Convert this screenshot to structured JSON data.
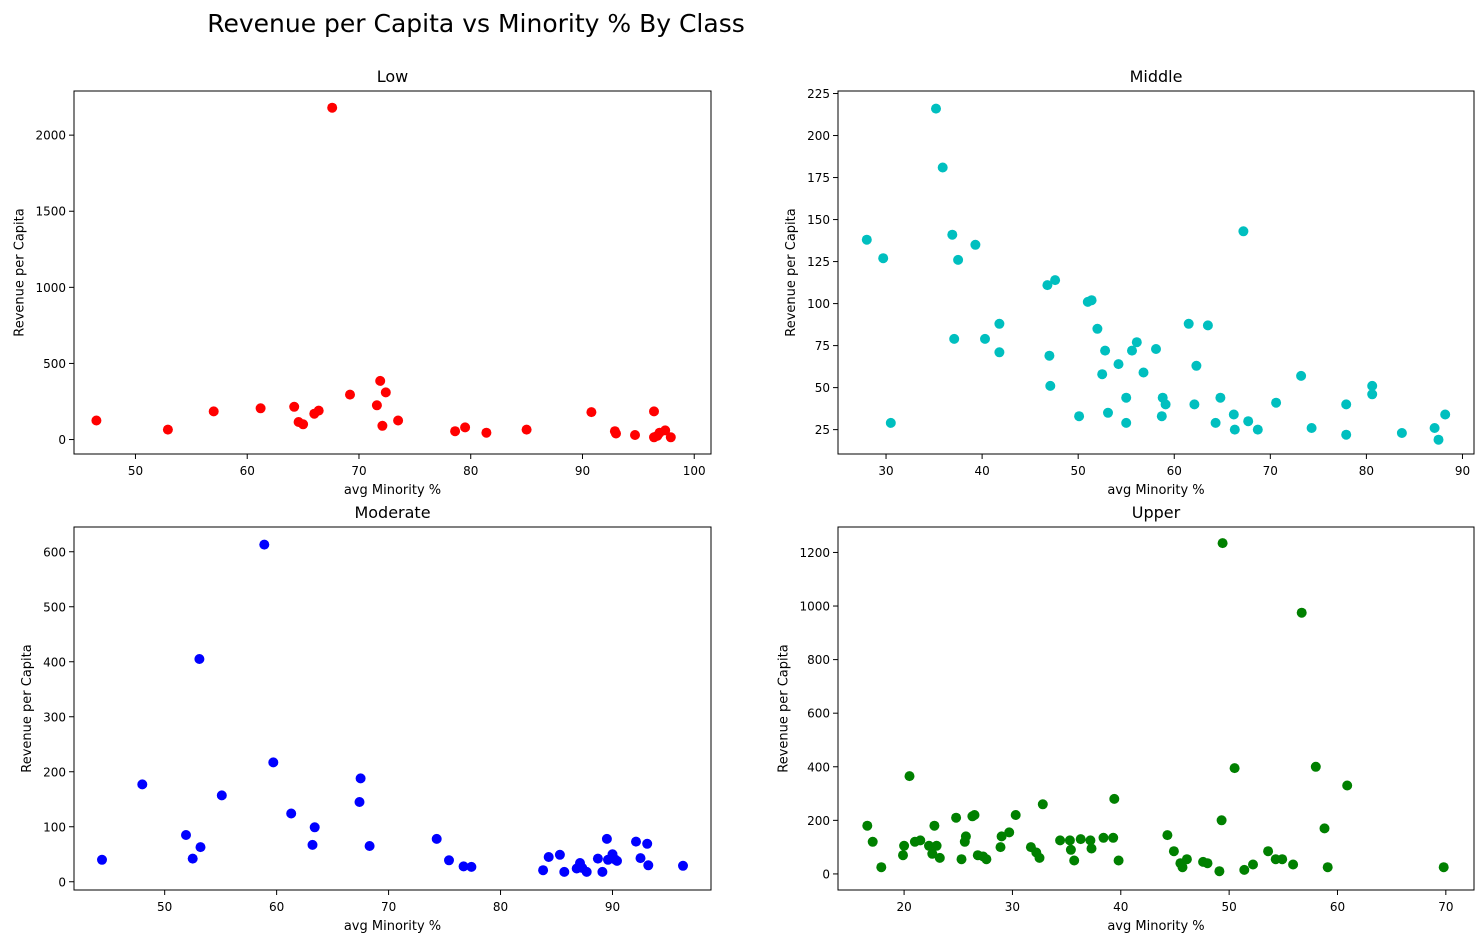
{
  "figure": {
    "title": "Revenue per Capita vs Minority % By Class"
  },
  "chart_data": [
    {
      "type": "scatter",
      "title": "Low",
      "xlabel": "avg Minority %",
      "ylabel": "Revenue per Capita",
      "color": "#ff0000",
      "xlim": [
        44.5,
        101.5
      ],
      "ylim": [
        -95,
        2290
      ],
      "xticks": [
        50,
        60,
        70,
        80,
        90,
        100
      ],
      "yticks": [
        0,
        500,
        1000,
        1500,
        2000
      ],
      "grid": false,
      "points": [
        [
          46.5,
          125
        ],
        [
          52.9,
          65
        ],
        [
          57,
          185
        ],
        [
          61.2,
          205
        ],
        [
          64.2,
          215
        ],
        [
          64.6,
          115
        ],
        [
          65,
          100
        ],
        [
          66,
          170
        ],
        [
          66.4,
          190
        ],
        [
          67.6,
          2180
        ],
        [
          69.2,
          295
        ],
        [
          71.6,
          225
        ],
        [
          71.9,
          385
        ],
        [
          72.1,
          90
        ],
        [
          72.4,
          310
        ],
        [
          73.5,
          125
        ],
        [
          78.6,
          55
        ],
        [
          79.5,
          80
        ],
        [
          81.4,
          45
        ],
        [
          85,
          65
        ],
        [
          90.8,
          180
        ],
        [
          92.9,
          55
        ],
        [
          93,
          40
        ],
        [
          94.7,
          30
        ],
        [
          96.4,
          185
        ],
        [
          96.4,
          15
        ],
        [
          96.7,
          25
        ],
        [
          96.9,
          45
        ],
        [
          97.4,
          60
        ],
        [
          97.9,
          15
        ]
      ]
    },
    {
      "type": "scatter",
      "title": "Middle",
      "xlabel": "avg Minority %",
      "ylabel": "Revenue per Capita",
      "color": "#00bfbf",
      "xlim": [
        25,
        91.2
      ],
      "ylim": [
        10.5,
        226.5
      ],
      "xticks": [
        30,
        40,
        50,
        60,
        70,
        80,
        90
      ],
      "yticks": [
        25,
        50,
        75,
        100,
        125,
        150,
        175,
        200,
        225
      ],
      "grid": false,
      "points": [
        [
          28,
          138
        ],
        [
          29.7,
          127
        ],
        [
          30.5,
          29
        ],
        [
          35.2,
          216
        ],
        [
          35.9,
          181
        ],
        [
          36.9,
          141
        ],
        [
          37.1,
          79
        ],
        [
          37.5,
          126
        ],
        [
          39.3,
          135
        ],
        [
          40.3,
          79
        ],
        [
          41.8,
          88
        ],
        [
          41.8,
          71
        ],
        [
          46.8,
          111
        ],
        [
          47,
          69
        ],
        [
          47.1,
          51
        ],
        [
          47.6,
          114
        ],
        [
          50.1,
          33
        ],
        [
          51,
          101
        ],
        [
          51.4,
          102
        ],
        [
          52,
          85
        ],
        [
          52.5,
          58
        ],
        [
          52.8,
          72
        ],
        [
          53.1,
          35
        ],
        [
          54.2,
          64
        ],
        [
          55,
          44
        ],
        [
          55,
          29
        ],
        [
          55.6,
          72
        ],
        [
          56.1,
          77
        ],
        [
          56.8,
          59
        ],
        [
          58.1,
          73
        ],
        [
          58.7,
          33
        ],
        [
          58.8,
          44
        ],
        [
          59.1,
          40
        ],
        [
          61.5,
          88
        ],
        [
          62.1,
          40
        ],
        [
          62.3,
          63
        ],
        [
          63.5,
          87
        ],
        [
          64.3,
          29
        ],
        [
          64.8,
          44
        ],
        [
          66.2,
          34
        ],
        [
          66.3,
          25
        ],
        [
          67.2,
          143
        ],
        [
          67.7,
          30
        ],
        [
          68.7,
          25
        ],
        [
          70.6,
          41
        ],
        [
          73.2,
          57
        ],
        [
          74.3,
          26
        ],
        [
          77.9,
          40
        ],
        [
          77.9,
          22
        ],
        [
          80.6,
          51
        ],
        [
          80.6,
          46
        ],
        [
          83.7,
          23
        ],
        [
          87.1,
          26
        ],
        [
          87.5,
          19
        ],
        [
          88.2,
          34
        ]
      ]
    },
    {
      "type": "scatter",
      "title": "Moderate",
      "xlabel": "avg Minority %",
      "ylabel": "Revenue per Capita",
      "color": "#0000ff",
      "xlim": [
        41.9,
        98.8
      ],
      "ylim": [
        -15,
        645
      ],
      "xticks": [
        50,
        60,
        70,
        80,
        90
      ],
      "yticks": [
        0,
        100,
        200,
        300,
        400,
        500,
        600
      ],
      "grid": false,
      "points": [
        [
          44.4,
          40
        ],
        [
          48,
          177
        ],
        [
          51.9,
          85
        ],
        [
          52.5,
          42
        ],
        [
          53.1,
          405
        ],
        [
          53.2,
          63
        ],
        [
          55.1,
          157
        ],
        [
          58.9,
          613
        ],
        [
          59.7,
          217
        ],
        [
          61.3,
          124
        ],
        [
          63.2,
          67
        ],
        [
          63.4,
          99
        ],
        [
          67.4,
          145
        ],
        [
          67.5,
          188
        ],
        [
          68.3,
          65
        ],
        [
          74.3,
          78
        ],
        [
          75.4,
          39
        ],
        [
          76.7,
          28
        ],
        [
          77.4,
          27
        ],
        [
          83.8,
          21
        ],
        [
          84.3,
          45
        ],
        [
          85.3,
          49
        ],
        [
          85.7,
          18
        ],
        [
          86.8,
          24
        ],
        [
          87.1,
          34
        ],
        [
          87.3,
          25
        ],
        [
          87.7,
          18
        ],
        [
          88.7,
          42
        ],
        [
          89.1,
          18
        ],
        [
          89.5,
          78
        ],
        [
          89.6,
          40
        ],
        [
          90,
          50
        ],
        [
          90.2,
          41
        ],
        [
          90.4,
          38
        ],
        [
          92.1,
          73
        ],
        [
          92.5,
          43
        ],
        [
          93.1,
          69
        ],
        [
          93.2,
          30
        ],
        [
          96.3,
          29
        ]
      ]
    },
    {
      "type": "scatter",
      "title": "Upper",
      "xlabel": "avg Minority %",
      "ylabel": "Revenue per Capita",
      "color": "#008000",
      "xlim": [
        13.9,
        72.6
      ],
      "ylim": [
        -60,
        1295
      ],
      "xticks": [
        20,
        30,
        40,
        50,
        60,
        70
      ],
      "yticks": [
        0,
        200,
        400,
        600,
        800,
        1000,
        1200
      ],
      "grid": false,
      "points": [
        [
          16.6,
          180
        ],
        [
          17.1,
          120
        ],
        [
          17.9,
          25
        ],
        [
          19.9,
          70
        ],
        [
          20,
          105
        ],
        [
          20.5,
          365
        ],
        [
          21,
          120
        ],
        [
          21.5,
          125
        ],
        [
          22.3,
          105
        ],
        [
          22.6,
          75
        ],
        [
          22.8,
          180
        ],
        [
          23,
          105
        ],
        [
          23.3,
          60
        ],
        [
          24.8,
          210
        ],
        [
          25.3,
          55
        ],
        [
          25.6,
          120
        ],
        [
          25.7,
          140
        ],
        [
          26.3,
          215
        ],
        [
          26.5,
          220
        ],
        [
          26.8,
          70
        ],
        [
          27.3,
          65
        ],
        [
          27.6,
          55
        ],
        [
          28.9,
          100
        ],
        [
          29,
          140
        ],
        [
          29.7,
          155
        ],
        [
          30.3,
          220
        ],
        [
          31.7,
          100
        ],
        [
          32.2,
          80
        ],
        [
          32.5,
          60
        ],
        [
          32.8,
          260
        ],
        [
          34.4,
          125
        ],
        [
          35.3,
          125
        ],
        [
          35.4,
          90
        ],
        [
          35.7,
          50
        ],
        [
          36.3,
          130
        ],
        [
          37.2,
          125
        ],
        [
          37.3,
          95
        ],
        [
          38.4,
          135
        ],
        [
          39.3,
          135
        ],
        [
          39.4,
          280
        ],
        [
          39.8,
          50
        ],
        [
          44.3,
          145
        ],
        [
          44.9,
          85
        ],
        [
          45.5,
          40
        ],
        [
          45.7,
          25
        ],
        [
          46.1,
          55
        ],
        [
          47.6,
          45
        ],
        [
          48,
          40
        ],
        [
          49.1,
          10
        ],
        [
          49.3,
          200
        ],
        [
          49.4,
          1235
        ],
        [
          50.5,
          395
        ],
        [
          51.4,
          15
        ],
        [
          52.2,
          35
        ],
        [
          53.6,
          85
        ],
        [
          54.3,
          55
        ],
        [
          54.9,
          55
        ],
        [
          55.9,
          35
        ],
        [
          56.7,
          975
        ],
        [
          58,
          400
        ],
        [
          58.8,
          170
        ],
        [
          59.1,
          25
        ],
        [
          60.9,
          330
        ],
        [
          69.8,
          25
        ]
      ]
    }
  ]
}
